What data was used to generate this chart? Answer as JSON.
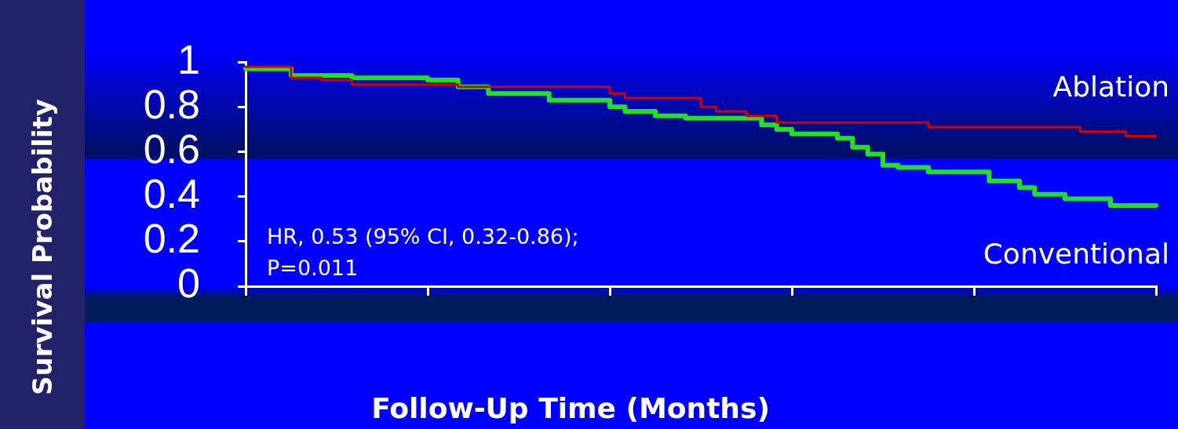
{
  "chart_data": {
    "type": "step",
    "xlabel": "Follow-Up Time (Months)",
    "ylabel": "Survival Probability",
    "categories": [
      null,
      null,
      null,
      null,
      null,
      null,
      null,
      null,
      null,
      null,
      null,
      null,
      null,
      null,
      null,
      null,
      null,
      null,
      null,
      null,
      null,
      null,
      null,
      null,
      null,
      null,
      null,
      null,
      null,
      null,
      null,
      null,
      null,
      null,
      null,
      null,
      null,
      null,
      null,
      null,
      null,
      null,
      null,
      null,
      null,
      null,
      null,
      null,
      null,
      null,
      null,
      null,
      null,
      null,
      null,
      null,
      null,
      null,
      null,
      null,
      null
    ],
    "series": [
      {
        "name": "Ablation",
        "color": "#d40000",
        "values": [
          0.98,
          0.98,
          0.98,
          0.93,
          0.93,
          0.92,
          0.92,
          0.9,
          0.9,
          0.9,
          0.9,
          0.9,
          0.9,
          0.9,
          0.89,
          0.89,
          0.89,
          0.89,
          0.89,
          0.89,
          0.89,
          0.89,
          0.89,
          0.89,
          0.86,
          0.84,
          0.84,
          0.84,
          0.84,
          0.84,
          0.8,
          0.78,
          0.78,
          0.76,
          0.76,
          0.73,
          0.73,
          0.73,
          0.73,
          0.73,
          0.73,
          0.73,
          0.73,
          0.73,
          0.73,
          0.71,
          0.71,
          0.71,
          0.71,
          0.71,
          0.71,
          0.71,
          0.71,
          0.71,
          0.71,
          0.69,
          0.69,
          0.69,
          0.67,
          0.67,
          0.67
        ]
      },
      {
        "name": "Conventional",
        "color": "#22e022",
        "values": [
          0.97,
          0.97,
          0.97,
          0.94,
          0.94,
          0.94,
          0.94,
          0.93,
          0.93,
          0.93,
          0.93,
          0.93,
          0.92,
          0.92,
          0.89,
          0.89,
          0.86,
          0.86,
          0.86,
          0.86,
          0.83,
          0.83,
          0.83,
          0.83,
          0.8,
          0.78,
          0.78,
          0.76,
          0.76,
          0.75,
          0.75,
          0.75,
          0.75,
          0.75,
          0.72,
          0.7,
          0.68,
          0.68,
          0.68,
          0.66,
          0.62,
          0.59,
          0.54,
          0.53,
          0.53,
          0.51,
          0.51,
          0.51,
          0.51,
          0.47,
          0.47,
          0.44,
          0.41,
          0.41,
          0.39,
          0.39,
          0.39,
          0.36,
          0.36,
          0.36,
          0.36
        ]
      }
    ],
    "ylim": [
      0,
      1
    ],
    "yticks": [
      0,
      0.2,
      0.4,
      0.6,
      0.8,
      1
    ],
    "grid": false,
    "legend": false,
    "tick_labels": "y",
    "marker": "none",
    "line_style": "solid",
    "annotations": [
      "HR, 0.53 (95% CI, 0.32-0.86);",
      "P=0.011"
    ]
  }
}
